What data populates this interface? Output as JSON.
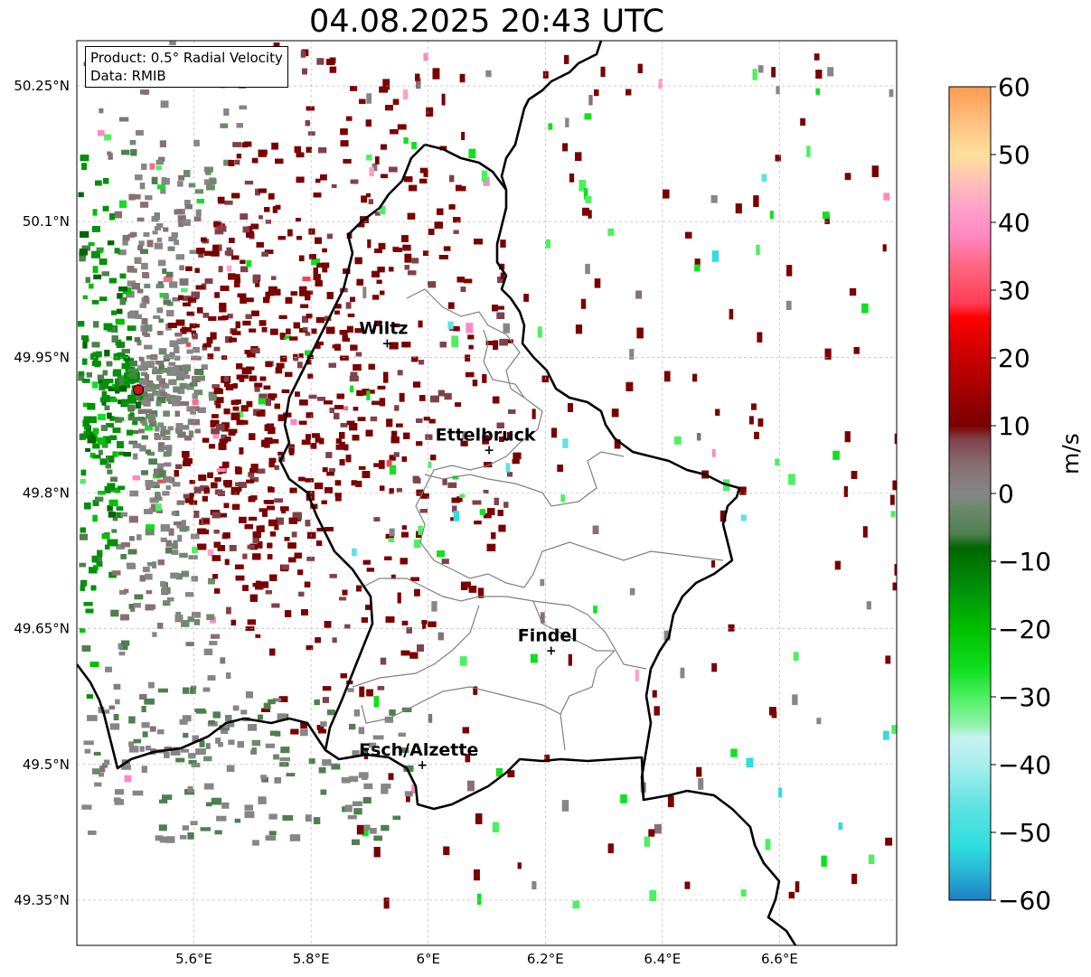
{
  "title": "04.08.2025 20:43 UTC",
  "info": {
    "product": "Product: 0.5° Radial Velocity",
    "data": "Data: RMIB"
  },
  "map": {
    "lon_range": [
      5.4,
      6.8
    ],
    "lat_range": [
      49.3,
      50.3
    ],
    "lon_ticks": [
      {
        "value": 5.6,
        "label": "5.6°E"
      },
      {
        "value": 5.8,
        "label": "5.8°E"
      },
      {
        "value": 6.0,
        "label": "6°E"
      },
      {
        "value": 6.2,
        "label": "6.2°E"
      },
      {
        "value": 6.4,
        "label": "6.4°E"
      },
      {
        "value": 6.6,
        "label": "6.6°E"
      }
    ],
    "lat_ticks": [
      {
        "value": 49.35,
        "label": "49.35°N"
      },
      {
        "value": 49.5,
        "label": "49.5°N"
      },
      {
        "value": 49.65,
        "label": "49.65°N"
      },
      {
        "value": 49.8,
        "label": "49.8°N"
      },
      {
        "value": 49.95,
        "label": "49.95°N"
      },
      {
        "value": 50.1,
        "label": "50.1°N"
      },
      {
        "value": 50.25,
        "label": "50.25°N"
      }
    ],
    "radar_site": {
      "lon": 5.505,
      "lat": 49.914
    },
    "cities": [
      {
        "name": "Wiltz",
        "lon": 5.93,
        "lat": 49.966
      },
      {
        "name": "Ettelbruck",
        "lon": 6.104,
        "lat": 49.848
      },
      {
        "name": "Findel",
        "lon": 6.21,
        "lat": 49.626
      },
      {
        "name": "Esch/Alzette",
        "lon": 5.99,
        "lat": 49.5
      }
    ]
  },
  "colorbar": {
    "min": -60,
    "max": 60,
    "unit": "m/s",
    "ticks": [
      {
        "value": 60,
        "label": "60"
      },
      {
        "value": 50,
        "label": "50"
      },
      {
        "value": 40,
        "label": "40"
      },
      {
        "value": 30,
        "label": "30"
      },
      {
        "value": 20,
        "label": "20"
      },
      {
        "value": 10,
        "label": "10"
      },
      {
        "value": 0,
        "label": "0"
      },
      {
        "value": -10,
        "label": "−10"
      },
      {
        "value": -20,
        "label": "−20"
      },
      {
        "value": -30,
        "label": "−30"
      },
      {
        "value": -40,
        "label": "−40"
      },
      {
        "value": -50,
        "label": "−50"
      },
      {
        "value": -60,
        "label": "−60"
      }
    ],
    "stops": [
      {
        "value": -60,
        "color": "#1f7fc4"
      },
      {
        "value": -56,
        "color": "#28b4d4"
      },
      {
        "value": -52,
        "color": "#2fdede"
      },
      {
        "value": -46,
        "color": "#5fe2e2"
      },
      {
        "value": -40,
        "color": "#a8eeee"
      },
      {
        "value": -36,
        "color": "#c4f2f0"
      },
      {
        "value": -34,
        "color": "#8ef2a8"
      },
      {
        "value": -30,
        "color": "#4cf060"
      },
      {
        "value": -26,
        "color": "#10e020"
      },
      {
        "value": -20,
        "color": "#00c000"
      },
      {
        "value": -14,
        "color": "#00900a"
      },
      {
        "value": -8,
        "color": "#006600"
      },
      {
        "value": -6,
        "color": "#4f7f4f"
      },
      {
        "value": -2,
        "color": "#6e8a6e"
      },
      {
        "value": 0,
        "color": "#868686"
      },
      {
        "value": 4,
        "color": "#877075"
      },
      {
        "value": 8,
        "color": "#80424a"
      },
      {
        "value": 10,
        "color": "#7a0000"
      },
      {
        "value": 16,
        "color": "#a80000"
      },
      {
        "value": 22,
        "color": "#d80000"
      },
      {
        "value": 26,
        "color": "#ff0000"
      },
      {
        "value": 28,
        "color": "#ff3c55"
      },
      {
        "value": 34,
        "color": "#ff6a86"
      },
      {
        "value": 38,
        "color": "#ff88c2"
      },
      {
        "value": 42,
        "color": "#ffa0c8"
      },
      {
        "value": 46,
        "color": "#ffc0b8"
      },
      {
        "value": 50,
        "color": "#ffe09a"
      },
      {
        "value": 55,
        "color": "#ffbf80"
      },
      {
        "value": 60,
        "color": "#ff9a50"
      }
    ]
  }
}
